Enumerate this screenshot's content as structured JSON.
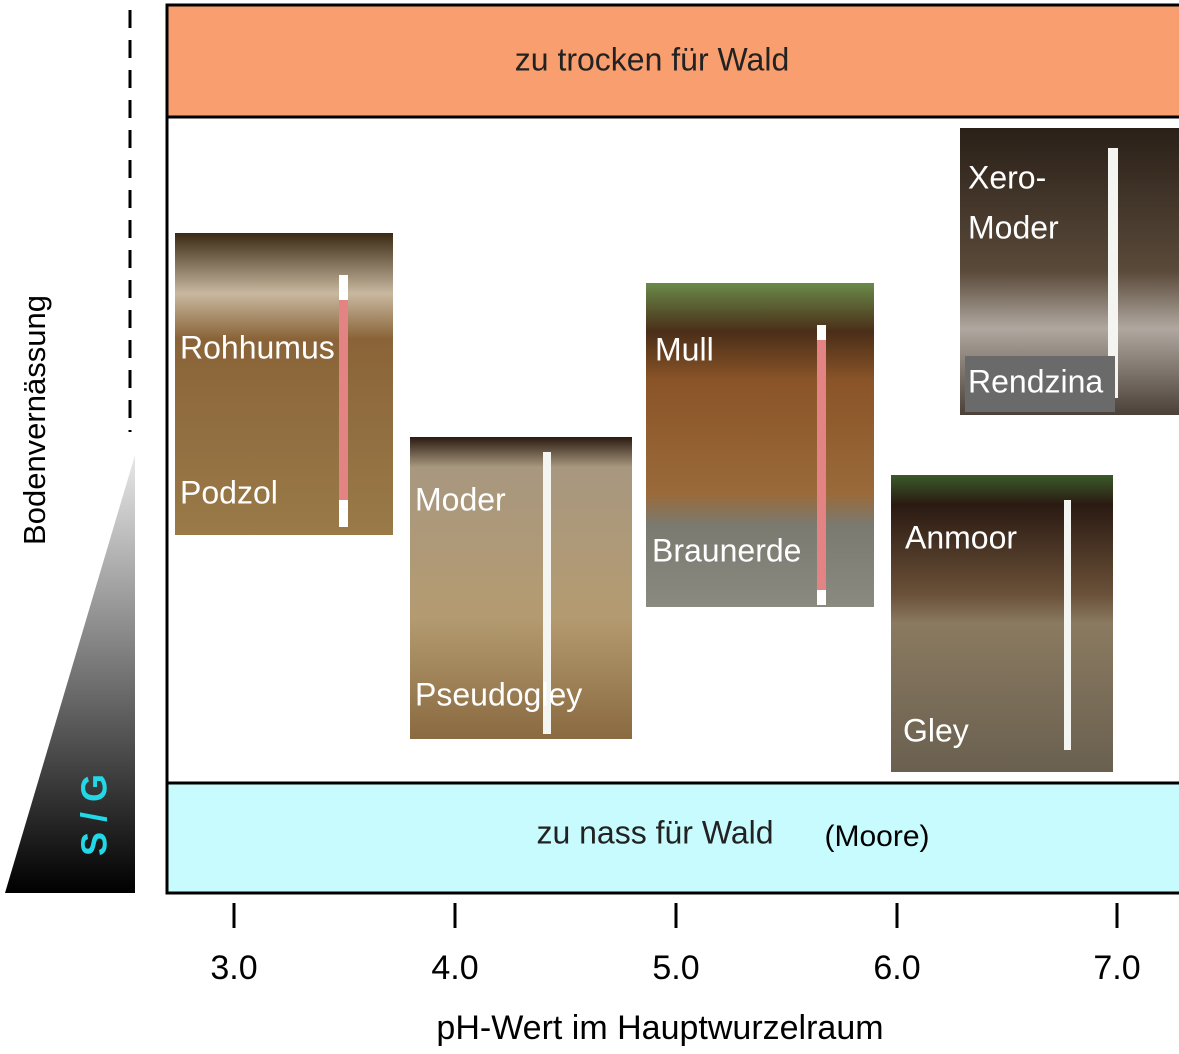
{
  "bands": {
    "top": "zu trocken für Wald",
    "bottom": "zu nass für Wald",
    "bottom_note": "(Moore)"
  },
  "y_axis": {
    "label": "Bodenvernässung",
    "scale_label": "S / G"
  },
  "x_axis": {
    "label": "pH-Wert im Hauptwurzelraum",
    "ticks": [
      "3.0",
      "4.0",
      "5.0",
      "6.0",
      "7.0"
    ]
  },
  "profiles": [
    {
      "labels": [
        "Rohhumus",
        "Podzol"
      ]
    },
    {
      "labels": [
        "Moder",
        "Pseudogley"
      ]
    },
    {
      "labels": [
        "Mull",
        "Braunerde"
      ]
    },
    {
      "labels": [
        "Anmoor",
        "Gley"
      ]
    },
    {
      "labels": [
        "Xero-",
        "Moder",
        "Rendzina"
      ]
    }
  ]
}
